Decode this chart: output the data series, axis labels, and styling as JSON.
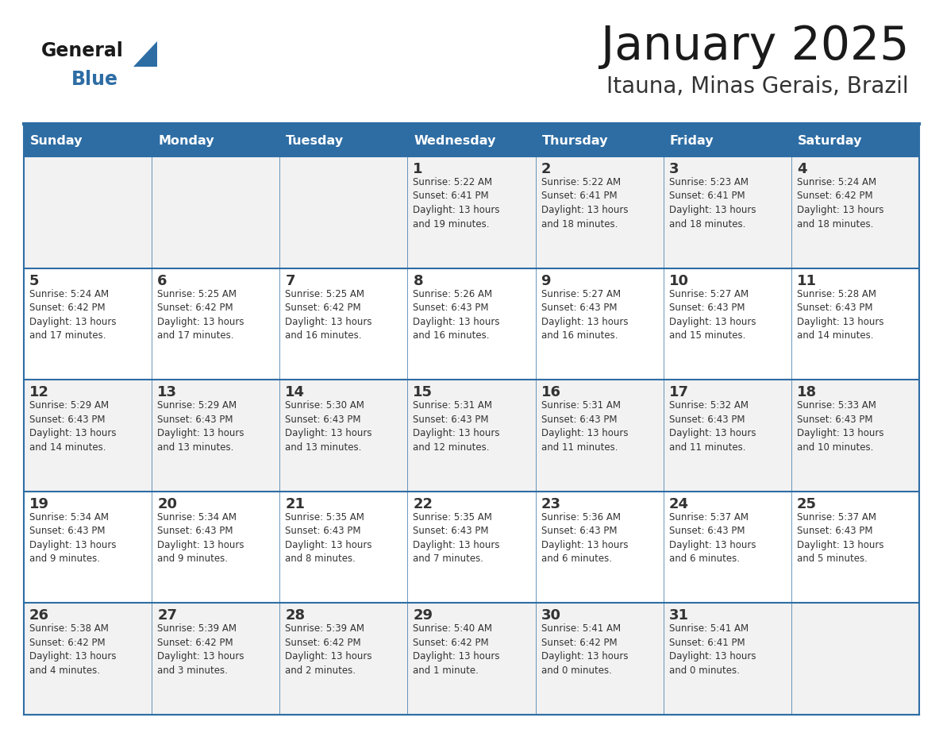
{
  "title": "January 2025",
  "subtitle": "Itauna, Minas Gerais, Brazil",
  "header_bg": "#2e6da4",
  "header_text": "#ffffff",
  "cell_bg_odd": "#f2f2f2",
  "cell_bg_even": "#ffffff",
  "divider_color": "#2e6da4",
  "text_color": "#333333",
  "logo_general_color": "#1a1a1a",
  "logo_blue_color": "#2e6da4",
  "logo_triangle_color": "#2e6da4",
  "days_of_week": [
    "Sunday",
    "Monday",
    "Tuesday",
    "Wednesday",
    "Thursday",
    "Friday",
    "Saturday"
  ],
  "weeks": [
    [
      {
        "day": "",
        "text": ""
      },
      {
        "day": "",
        "text": ""
      },
      {
        "day": "",
        "text": ""
      },
      {
        "day": "1",
        "text": "Sunrise: 5:22 AM\nSunset: 6:41 PM\nDaylight: 13 hours\nand 19 minutes."
      },
      {
        "day": "2",
        "text": "Sunrise: 5:22 AM\nSunset: 6:41 PM\nDaylight: 13 hours\nand 18 minutes."
      },
      {
        "day": "3",
        "text": "Sunrise: 5:23 AM\nSunset: 6:41 PM\nDaylight: 13 hours\nand 18 minutes."
      },
      {
        "day": "4",
        "text": "Sunrise: 5:24 AM\nSunset: 6:42 PM\nDaylight: 13 hours\nand 18 minutes."
      }
    ],
    [
      {
        "day": "5",
        "text": "Sunrise: 5:24 AM\nSunset: 6:42 PM\nDaylight: 13 hours\nand 17 minutes."
      },
      {
        "day": "6",
        "text": "Sunrise: 5:25 AM\nSunset: 6:42 PM\nDaylight: 13 hours\nand 17 minutes."
      },
      {
        "day": "7",
        "text": "Sunrise: 5:25 AM\nSunset: 6:42 PM\nDaylight: 13 hours\nand 16 minutes."
      },
      {
        "day": "8",
        "text": "Sunrise: 5:26 AM\nSunset: 6:43 PM\nDaylight: 13 hours\nand 16 minutes."
      },
      {
        "day": "9",
        "text": "Sunrise: 5:27 AM\nSunset: 6:43 PM\nDaylight: 13 hours\nand 16 minutes."
      },
      {
        "day": "10",
        "text": "Sunrise: 5:27 AM\nSunset: 6:43 PM\nDaylight: 13 hours\nand 15 minutes."
      },
      {
        "day": "11",
        "text": "Sunrise: 5:28 AM\nSunset: 6:43 PM\nDaylight: 13 hours\nand 14 minutes."
      }
    ],
    [
      {
        "day": "12",
        "text": "Sunrise: 5:29 AM\nSunset: 6:43 PM\nDaylight: 13 hours\nand 14 minutes."
      },
      {
        "day": "13",
        "text": "Sunrise: 5:29 AM\nSunset: 6:43 PM\nDaylight: 13 hours\nand 13 minutes."
      },
      {
        "day": "14",
        "text": "Sunrise: 5:30 AM\nSunset: 6:43 PM\nDaylight: 13 hours\nand 13 minutes."
      },
      {
        "day": "15",
        "text": "Sunrise: 5:31 AM\nSunset: 6:43 PM\nDaylight: 13 hours\nand 12 minutes."
      },
      {
        "day": "16",
        "text": "Sunrise: 5:31 AM\nSunset: 6:43 PM\nDaylight: 13 hours\nand 11 minutes."
      },
      {
        "day": "17",
        "text": "Sunrise: 5:32 AM\nSunset: 6:43 PM\nDaylight: 13 hours\nand 11 minutes."
      },
      {
        "day": "18",
        "text": "Sunrise: 5:33 AM\nSunset: 6:43 PM\nDaylight: 13 hours\nand 10 minutes."
      }
    ],
    [
      {
        "day": "19",
        "text": "Sunrise: 5:34 AM\nSunset: 6:43 PM\nDaylight: 13 hours\nand 9 minutes."
      },
      {
        "day": "20",
        "text": "Sunrise: 5:34 AM\nSunset: 6:43 PM\nDaylight: 13 hours\nand 9 minutes."
      },
      {
        "day": "21",
        "text": "Sunrise: 5:35 AM\nSunset: 6:43 PM\nDaylight: 13 hours\nand 8 minutes."
      },
      {
        "day": "22",
        "text": "Sunrise: 5:35 AM\nSunset: 6:43 PM\nDaylight: 13 hours\nand 7 minutes."
      },
      {
        "day": "23",
        "text": "Sunrise: 5:36 AM\nSunset: 6:43 PM\nDaylight: 13 hours\nand 6 minutes."
      },
      {
        "day": "24",
        "text": "Sunrise: 5:37 AM\nSunset: 6:43 PM\nDaylight: 13 hours\nand 6 minutes."
      },
      {
        "day": "25",
        "text": "Sunrise: 5:37 AM\nSunset: 6:43 PM\nDaylight: 13 hours\nand 5 minutes."
      }
    ],
    [
      {
        "day": "26",
        "text": "Sunrise: 5:38 AM\nSunset: 6:42 PM\nDaylight: 13 hours\nand 4 minutes."
      },
      {
        "day": "27",
        "text": "Sunrise: 5:39 AM\nSunset: 6:42 PM\nDaylight: 13 hours\nand 3 minutes."
      },
      {
        "day": "28",
        "text": "Sunrise: 5:39 AM\nSunset: 6:42 PM\nDaylight: 13 hours\nand 2 minutes."
      },
      {
        "day": "29",
        "text": "Sunrise: 5:40 AM\nSunset: 6:42 PM\nDaylight: 13 hours\nand 1 minute."
      },
      {
        "day": "30",
        "text": "Sunrise: 5:41 AM\nSunset: 6:42 PM\nDaylight: 13 hours\nand 0 minutes."
      },
      {
        "day": "31",
        "text": "Sunrise: 5:41 AM\nSunset: 6:41 PM\nDaylight: 13 hours\nand 0 minutes."
      },
      {
        "day": "",
        "text": ""
      }
    ]
  ]
}
